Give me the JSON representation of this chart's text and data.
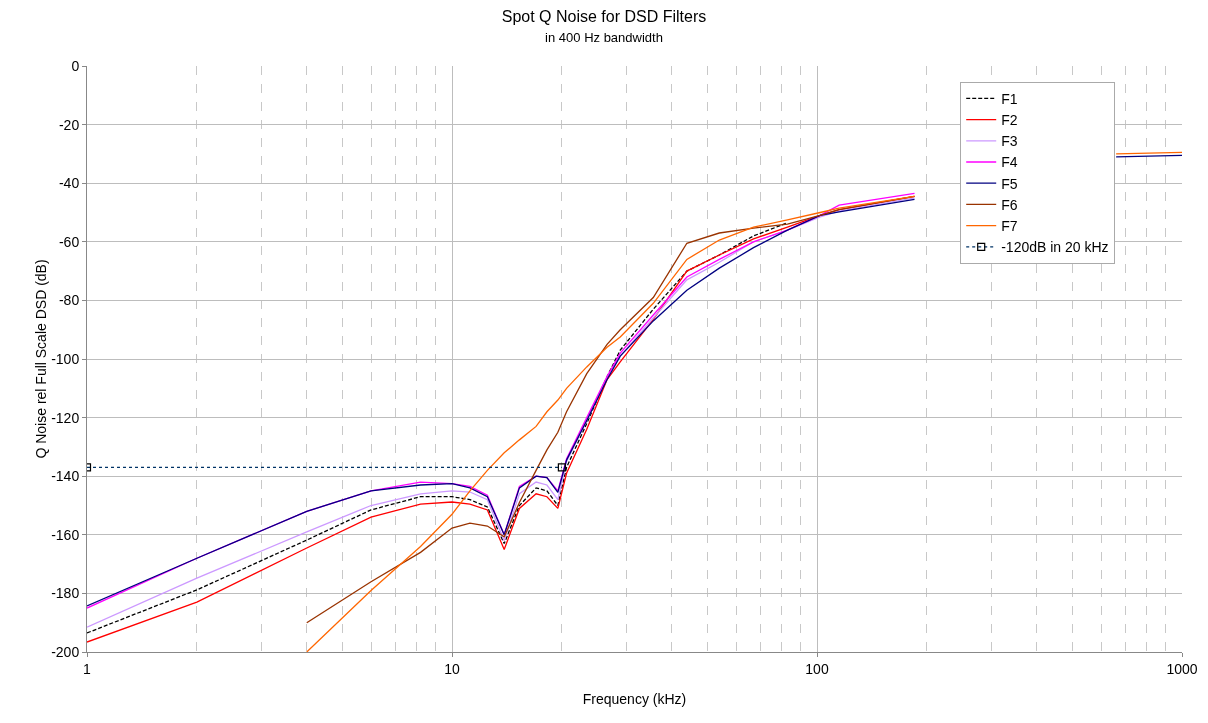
{
  "chart_data": {
    "type": "line",
    "title": "Spot Q Noise for DSD Filters",
    "subtitle": "in 400 Hz bandwidth",
    "xlabel": "Frequency (kHz)",
    "ylabel": "Q Noise rel Full Scale DSD (dB)",
    "log": "x",
    "xlim": [
      1,
      1000
    ],
    "xticks": [
      1,
      10,
      100,
      1000
    ],
    "ylim": [
      -200,
      0
    ],
    "yticks": [
      -200,
      -180,
      -160,
      -140,
      -120,
      -100,
      -80,
      -60,
      -40,
      -20,
      0
    ],
    "grid": true,
    "legend": "top right",
    "marker": "none",
    "x": [
      1,
      2,
      4,
      6,
      8.2,
      10,
      11.2,
      12.5,
      13.9,
      15.3,
      17,
      18.2,
      19.5,
      20.6,
      23.4,
      26.6,
      28.9,
      35.6,
      44,
      54,
      67,
      83,
      102,
      115,
      185,
      300,
      660,
      1000
    ],
    "series": [
      {
        "name": "F1",
        "color": "#000000",
        "line_style": "dashed",
        "values": [
          -193.5,
          -178.8,
          -161.8,
          -151.5,
          -147,
          -147,
          -148,
          -150.5,
          -163,
          -150,
          -144,
          -145,
          -150,
          -137,
          -122,
          -106,
          -97,
          -83,
          -70,
          -64.5,
          -58,
          -53.5,
          null,
          null,
          null,
          null,
          null,
          null
        ]
      },
      {
        "name": "F2",
        "color": "#ff0000",
        "values": [
          -196.6,
          -183,
          -164.5,
          -154,
          -149.5,
          -148.8,
          -149.5,
          -151.5,
          -165,
          -151,
          -146,
          -147,
          -151,
          -139,
          -124,
          -107,
          -101,
          -86.5,
          -70,
          -64.5,
          -59,
          -55,
          -51,
          -49,
          -44.5,
          null,
          null,
          null
        ]
      },
      {
        "name": "F3",
        "color": "#cc99ff",
        "values": [
          -191.5,
          -174.8,
          -159,
          -150,
          -146,
          -145,
          -145.4,
          -148,
          -162,
          -146,
          -142,
          -143,
          -148,
          -135,
          -121,
          -106,
          -99,
          -86,
          -73,
          -67,
          -60,
          -56,
          -51.5,
          -49.5,
          -45,
          null,
          null,
          null
        ]
      },
      {
        "name": "F4",
        "color": "#ff00ff",
        "values": [
          -185,
          -168,
          -152,
          -145,
          -142,
          -142.5,
          -143.5,
          -146.5,
          -160,
          -143.5,
          -140,
          -140.5,
          -145,
          -134,
          -120,
          -106,
          -98,
          -85,
          -72,
          -66,
          -60,
          -56,
          -51,
          -47.5,
          -43.5,
          null,
          null,
          null
        ]
      },
      {
        "name": "F5",
        "color": "#000080",
        "values": [
          -184.3,
          -168,
          -152,
          -145,
          -143,
          -142.5,
          -144,
          -147,
          -160,
          -144,
          -140,
          -140.5,
          -145.5,
          -134.5,
          -121,
          -107,
          -99,
          -87,
          -76.5,
          -69,
          -62,
          -56,
          -51,
          -49.8,
          -45.5,
          null,
          -31,
          -30.5
        ]
      },
      {
        "name": "F6",
        "color": "#993300",
        "values": [
          null,
          null,
          -190,
          -176,
          -166,
          -157.7,
          -156,
          -157,
          -160.7,
          -149,
          -138,
          -131,
          -125,
          -118,
          -105,
          -95,
          -90,
          -79,
          -60.5,
          -57,
          -55.3,
          -54,
          -51,
          -49,
          -44.5,
          null,
          null,
          null
        ]
      },
      {
        "name": "F7",
        "color": "#ff6600",
        "values": [
          null,
          null,
          -200,
          -179,
          -164,
          -153,
          -145,
          -138,
          -132,
          -127.6,
          -123,
          -118,
          -114,
          -110,
          -102.7,
          -96,
          -92.5,
          -81,
          -66,
          -59.4,
          -55,
          -52.5,
          -50,
          -48.5,
          -44.5,
          null,
          -30,
          -29.5
        ]
      },
      {
        "name": "-120dB in 20 kHz",
        "color": "#003366",
        "line_style": "dotted",
        "marker": "square",
        "x": [
          1,
          20
        ],
        "values": [
          -137,
          -137
        ]
      }
    ]
  }
}
